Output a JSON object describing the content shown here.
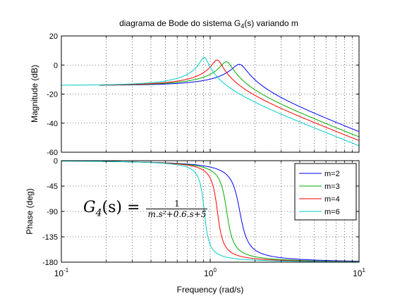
{
  "chart_data": {
    "type": "line",
    "title_parts": {
      "main": "diagrama de Bode do sistema G",
      "sub": "4",
      "tail": "(s) variando m"
    },
    "xlabel": "Frequency  (rad/s)",
    "xscale": "log",
    "xlim": [
      0.1,
      10
    ],
    "x_ticks": [
      {
        "value": 0.1,
        "base": "10",
        "exp": "-1"
      },
      {
        "value": 1,
        "base": "10",
        "exp": "0"
      },
      {
        "value": 10,
        "base": "10",
        "exp": "1"
      }
    ],
    "grid": true,
    "colors": {
      "m2": "#0000ff",
      "m3": "#00aa00",
      "m4": "#ff0000",
      "m6": "#00cccc"
    },
    "magnitude": {
      "ylabel": "Magnitude (dB)",
      "ylim": [
        -60,
        20
      ],
      "yticks": [
        "20",
        "0",
        "-20",
        "-40",
        "-60"
      ],
      "ytick_values": [
        20,
        0,
        -20,
        -40,
        -60
      ]
    },
    "phase": {
      "ylabel": "Phase (deg)",
      "ylim": [
        -180,
        0
      ],
      "yticks": [
        "0",
        "-45",
        "-90",
        "-135",
        "-180"
      ],
      "ytick_values": [
        0,
        -45,
        -90,
        -135,
        -180
      ]
    },
    "legend": {
      "position": "top-right"
    },
    "series": [
      {
        "name": "m=2",
        "m": 2,
        "color": "#0000ff",
        "x_start": 0.18
      },
      {
        "name": "m=3",
        "m": 3,
        "color": "#00aa00",
        "x_start": 0.18
      },
      {
        "name": "m=4",
        "m": 4,
        "color": "#ff0000",
        "x_start": 0.18
      },
      {
        "name": "m=6",
        "m": 6,
        "color": "#00cccc",
        "x_start": 0.1
      }
    ],
    "annotation": {
      "lhs": "G",
      "lhs_sub": "4",
      "lhs_tail": "(s) =",
      "numerator": "1",
      "denominator": "m.s²+0.6.s+5"
    }
  }
}
